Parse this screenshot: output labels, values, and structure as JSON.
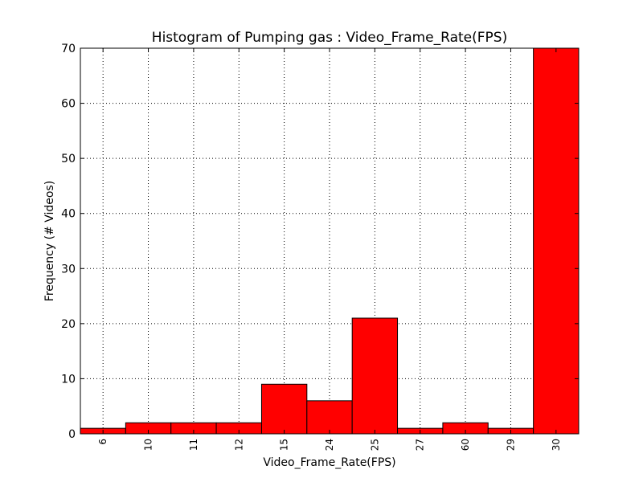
{
  "chart_data": {
    "type": "bar",
    "title": "Histogram of Pumping gas : Video_Frame_Rate(FPS)",
    "xlabel": "Video_Frame_Rate(FPS)",
    "ylabel": "Frequency (# Videos)",
    "categories": [
      "6",
      "10",
      "11",
      "12",
      "15",
      "24",
      "25",
      "27",
      "60",
      "29",
      "30"
    ],
    "values": [
      1,
      2,
      2,
      2,
      9,
      6,
      21,
      1,
      2,
      1,
      70
    ],
    "ylim": [
      0,
      70
    ],
    "yticks": [
      "0",
      "10",
      "20",
      "30",
      "40",
      "50",
      "60",
      "70"
    ],
    "grid": true,
    "bar_color": "#ff0000",
    "edge_color": "#000000"
  }
}
